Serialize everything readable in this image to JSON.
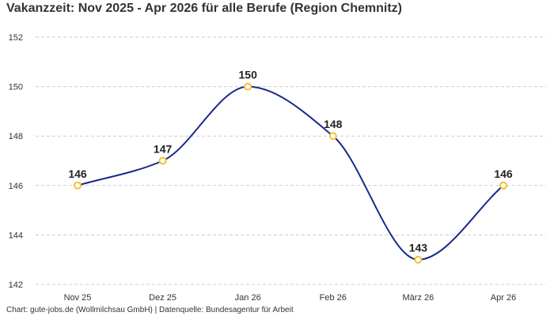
{
  "chart_data": {
    "type": "line",
    "title": "Vakanzzeit: Nov 2025 - Apr 2026 für alle Berufe (Region Chemnitz)",
    "categories": [
      "Nov 25",
      "Dez 25",
      "Jan 26",
      "Feb 26",
      "März 26",
      "Apr 26"
    ],
    "series": [
      {
        "values": [
          146,
          147,
          150,
          148,
          143,
          146
        ]
      }
    ],
    "ylim": [
      142,
      152
    ],
    "yticks": [
      142,
      144,
      146,
      148,
      150,
      152
    ],
    "grid": true,
    "xlabel": "",
    "ylabel": "",
    "line_color": "#1a2a8a",
    "marker_color": "#f2c12e"
  },
  "footer": {
    "credit": "Chart: gute-jobs.de (Wollmilchsau GmbH) | Datenquelle: Bundesagentur für Arbeit"
  }
}
